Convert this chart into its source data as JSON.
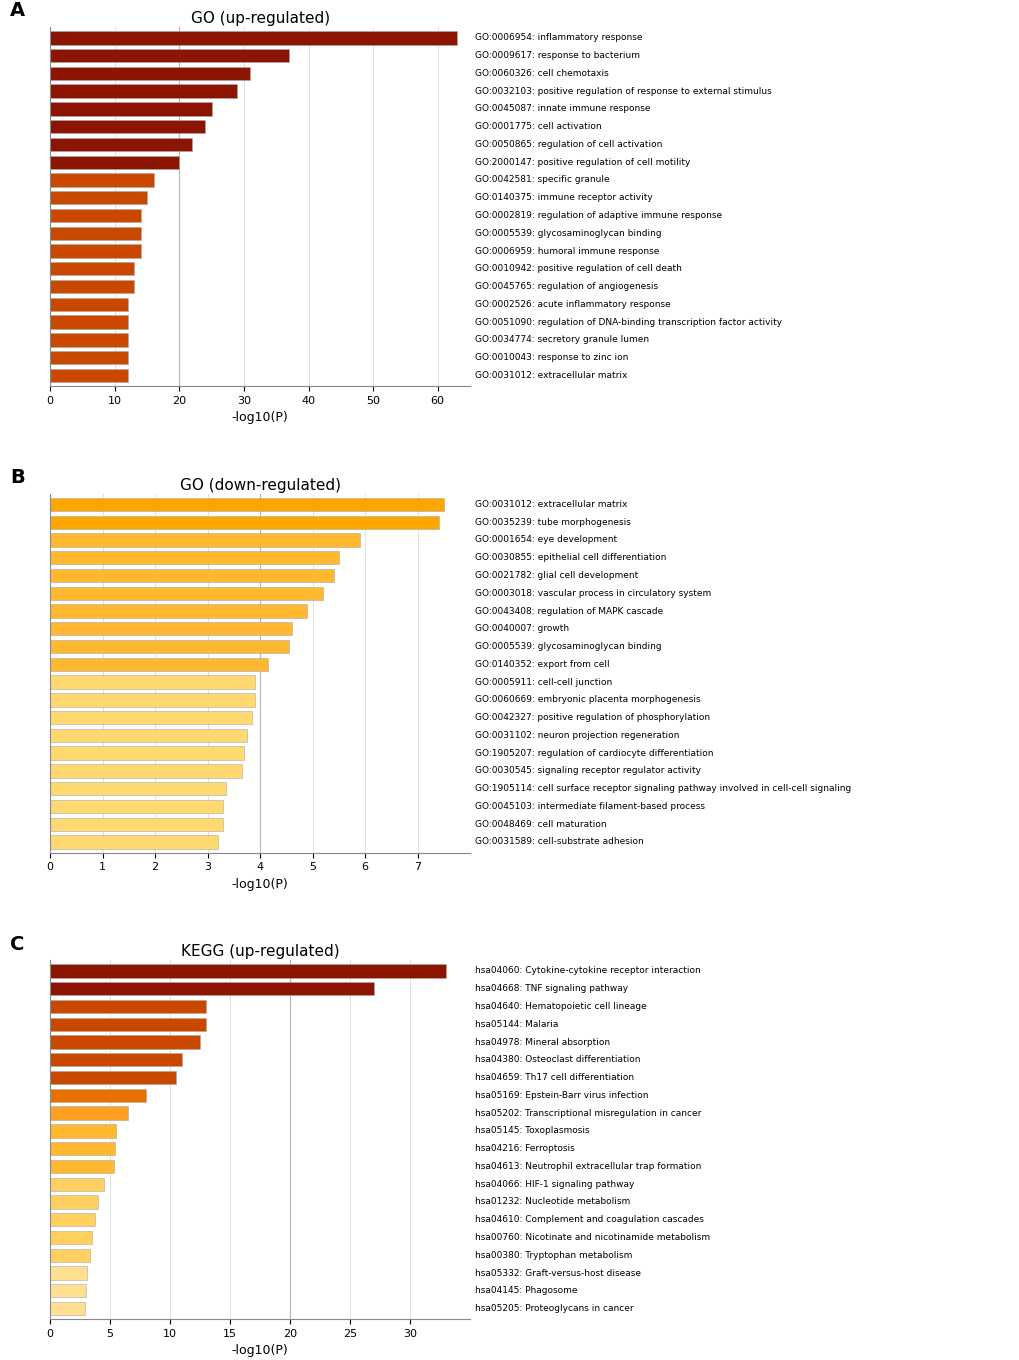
{
  "panel_A": {
    "title": "GO (up-regulated)",
    "xlabel": "-log10(P)",
    "labels": [
      "GO:0006954: inflammatory response",
      "GO:0009617: response to bacterium",
      "GO:0060326: cell chemotaxis",
      "GO:0032103: positive regulation of response to external stimulus",
      "GO:0045087: innate immune response",
      "GO:0001775: cell activation",
      "GO:0050865: regulation of cell activation",
      "GO:2000147: positive regulation of cell motility",
      "GO:0042581: specific granule",
      "GO:0140375: immune receptor activity",
      "GO:0002819: regulation of adaptive immune response",
      "GO:0005539: glycosaminoglycan binding",
      "GO:0006959: humoral immune response",
      "GO:0010942: positive regulation of cell death",
      "GO:0045765: regulation of angiogenesis",
      "GO:0002526: acute inflammatory response",
      "GO:0051090: regulation of DNA-binding transcription factor activity",
      "GO:0034774: secretory granule lumen",
      "GO:0010043: response to zinc ion",
      "GO:0031012: extracellular matrix"
    ],
    "values": [
      63,
      37,
      31,
      29,
      25,
      24,
      22,
      20,
      16,
      15,
      14,
      14,
      14,
      13,
      13,
      12,
      12,
      12,
      12,
      12
    ],
    "colors": [
      "#8B1500",
      "#8B1500",
      "#8B1500",
      "#8B1500",
      "#8B1500",
      "#8B1500",
      "#8B1500",
      "#8B1500",
      "#C84800",
      "#C84800",
      "#C84800",
      "#C84800",
      "#C84800",
      "#C84800",
      "#C84800",
      "#C84800",
      "#C84800",
      "#C84800",
      "#C84800",
      "#C84800"
    ],
    "xlim": [
      0,
      65
    ],
    "xticks": [
      0,
      10,
      20,
      30,
      40,
      50,
      60
    ],
    "vline": 20
  },
  "panel_B": {
    "title": "GO (down-regulated)",
    "xlabel": "-log10(P)",
    "labels": [
      "GO:0031012: extracellular matrix",
      "GO:0035239: tube morphogenesis",
      "GO:0001654: eye development",
      "GO:0030855: epithelial cell differentiation",
      "GO:0021782: glial cell development",
      "GO:0003018: vascular process in circulatory system",
      "GO:0043408: regulation of MAPK cascade",
      "GO:0040007: growth",
      "GO:0005539: glycosaminoglycan binding",
      "GO:0140352: export from cell",
      "GO:0005911: cell-cell junction",
      "GO:0060669: embryonic placenta morphogenesis",
      "GO:0042327: positive regulation of phosphorylation",
      "GO:0031102: neuron projection regeneration",
      "GO:1905207: regulation of cardiocyte differentiation",
      "GO:0030545: signaling receptor regulator activity",
      "GO:1905114: cell surface receptor signaling pathway involved in cell-cell signaling",
      "GO:0045103: intermediate filament-based process",
      "GO:0048469: cell maturation",
      "GO:0031589: cell-substrate adhesion"
    ],
    "values": [
      7.5,
      7.4,
      5.9,
      5.5,
      5.4,
      5.2,
      4.9,
      4.6,
      4.55,
      4.15,
      3.9,
      3.9,
      3.85,
      3.75,
      3.7,
      3.65,
      3.35,
      3.3,
      3.3,
      3.2
    ],
    "colors": [
      "#FFA500",
      "#FFA500",
      "#FFB830",
      "#FFB830",
      "#FFB830",
      "#FFB830",
      "#FFB830",
      "#FFB830",
      "#FFB830",
      "#FFB830",
      "#FFD870",
      "#FFD870",
      "#FFD870",
      "#FFD870",
      "#FFD870",
      "#FFD870",
      "#FFD870",
      "#FFD870",
      "#FFD870",
      "#FFD870"
    ],
    "xlim": [
      0,
      8.0
    ],
    "xticks": [
      0,
      1,
      2,
      3,
      4,
      5,
      6,
      7
    ],
    "vline": 4
  },
  "panel_C": {
    "title": "KEGG (up-regulated)",
    "xlabel": "-log10(P)",
    "labels": [
      "hsa04060: Cytokine-cytokine receptor interaction",
      "hsa04668: TNF signaling pathway",
      "hsa04640: Hematopoietic cell lineage",
      "hsa05144: Malaria",
      "hsa04978: Mineral absorption",
      "hsa04380: Osteoclast differentiation",
      "hsa04659: Th17 cell differentiation",
      "hsa05169: Epstein-Barr virus infection",
      "hsa05202: Transcriptional misregulation in cancer",
      "hsa05145: Toxoplasmosis",
      "hsa04216: Ferroptosis",
      "hsa04613: Neutrophil extracellular trap formation",
      "hsa04066: HIF-1 signaling pathway",
      "hsa01232: Nucleotide metabolism",
      "hsa04610: Complement and coagulation cascades",
      "hsa00760: Nicotinate and nicotinamide metabolism",
      "hsa00380: Tryptophan metabolism",
      "hsa05332: Graft-versus-host disease",
      "hsa04145: Phagosome",
      "hsa05205: Proteoglycans in cancer"
    ],
    "values": [
      33,
      27,
      13,
      13,
      12.5,
      11,
      10.5,
      8,
      6.5,
      5.5,
      5.4,
      5.3,
      4.5,
      4.0,
      3.7,
      3.5,
      3.3,
      3.1,
      3.0,
      2.9
    ],
    "colors": [
      "#8B1500",
      "#8B1500",
      "#C84800",
      "#C84800",
      "#C84800",
      "#C84800",
      "#C84800",
      "#E87000",
      "#FFA020",
      "#FFB830",
      "#FFB830",
      "#FFB830",
      "#FFD060",
      "#FFD060",
      "#FFD060",
      "#FFD060",
      "#FFD060",
      "#FFE090",
      "#FFE090",
      "#FFE090"
    ],
    "xlim": [
      0,
      35
    ],
    "xticks": [
      0,
      5,
      10,
      15,
      20,
      25,
      30
    ],
    "vline": 20
  }
}
